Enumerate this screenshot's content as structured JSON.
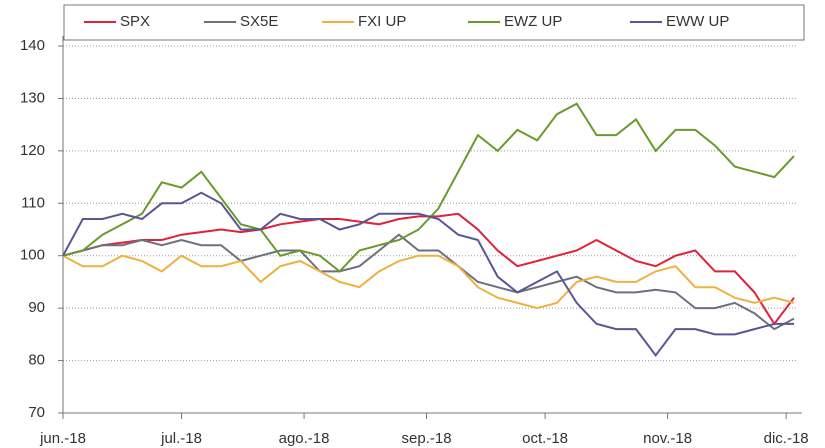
{
  "chart_data": {
    "type": "line",
    "x": [
      0,
      5,
      10,
      15,
      20,
      25,
      30,
      35,
      40,
      45,
      50,
      55,
      60,
      65,
      70,
      75,
      80,
      85,
      90,
      95,
      100,
      105,
      110,
      115,
      120,
      125,
      130,
      135,
      140,
      145,
      150,
      155,
      160,
      165,
      170,
      175,
      180,
      185
    ],
    "xlim": [
      0,
      186
    ],
    "xticks": [
      {
        "value": 0,
        "label": "jun.-18"
      },
      {
        "value": 30,
        "label": "jul.-18"
      },
      {
        "value": 61,
        "label": "ago.-18"
      },
      {
        "value": 92,
        "label": "sep.-18"
      },
      {
        "value": 122,
        "label": "oct.-18"
      },
      {
        "value": 153,
        "label": "nov.-18"
      },
      {
        "value": 183,
        "label": "dic.-18"
      }
    ],
    "ylim": [
      70,
      140
    ],
    "yticks": [
      70,
      80,
      90,
      100,
      110,
      120,
      130,
      140
    ],
    "grid": true,
    "legend": "top",
    "series": [
      {
        "name": "SPX",
        "color": "#e0213a",
        "values": [
          100,
          101,
          102,
          102.5,
          103,
          103,
          104,
          104.5,
          105,
          104.5,
          105,
          106,
          106.5,
          107,
          107,
          106.5,
          106,
          107,
          107.5,
          107.5,
          108,
          105,
          101,
          98,
          99,
          100,
          101,
          103,
          101,
          99,
          98,
          100,
          101,
          97,
          97,
          93,
          87,
          92
        ]
      },
      {
        "name": "SX5E",
        "color": "#6d6f80",
        "values": [
          100,
          101,
          102,
          102,
          103,
          102,
          103,
          102,
          102,
          99,
          100,
          101,
          101,
          97,
          97,
          98,
          101,
          104,
          101,
          101,
          98,
          95,
          94,
          93,
          94,
          95,
          96,
          94,
          93,
          93,
          93.5,
          93,
          90,
          90,
          91,
          89,
          86,
          88
        ]
      },
      {
        "name": "FXI UP",
        "color": "#f0b040",
        "values": [
          100,
          98,
          98,
          100,
          99,
          97,
          100,
          98,
          98,
          99,
          95,
          98,
          99,
          97,
          95,
          94,
          97,
          99,
          100,
          100,
          98,
          94,
          92,
          91,
          90,
          91,
          95,
          96,
          95,
          95,
          97,
          98,
          94,
          94,
          92,
          91,
          92,
          91
        ]
      },
      {
        "name": "EWZ UP",
        "color": "#6a9a2b",
        "values": [
          100,
          101,
          104,
          106,
          108,
          114,
          113,
          116,
          111,
          106,
          105,
          100,
          101,
          100,
          97,
          101,
          102,
          103,
          105,
          109,
          116,
          123,
          120,
          124,
          122,
          127,
          129,
          123,
          123,
          126,
          120,
          124,
          124,
          121,
          117,
          116,
          115,
          119
        ]
      },
      {
        "name": "EWW UP",
        "color": "#5a5595",
        "values": [
          100,
          107,
          107,
          108,
          107,
          110,
          110,
          112,
          110,
          105,
          105,
          108,
          107,
          107,
          105,
          106,
          108,
          108,
          108,
          107,
          104,
          103,
          96,
          93,
          95,
          97,
          91,
          87,
          86,
          86,
          81,
          86,
          86,
          85,
          85,
          86,
          87,
          87
        ]
      }
    ]
  }
}
